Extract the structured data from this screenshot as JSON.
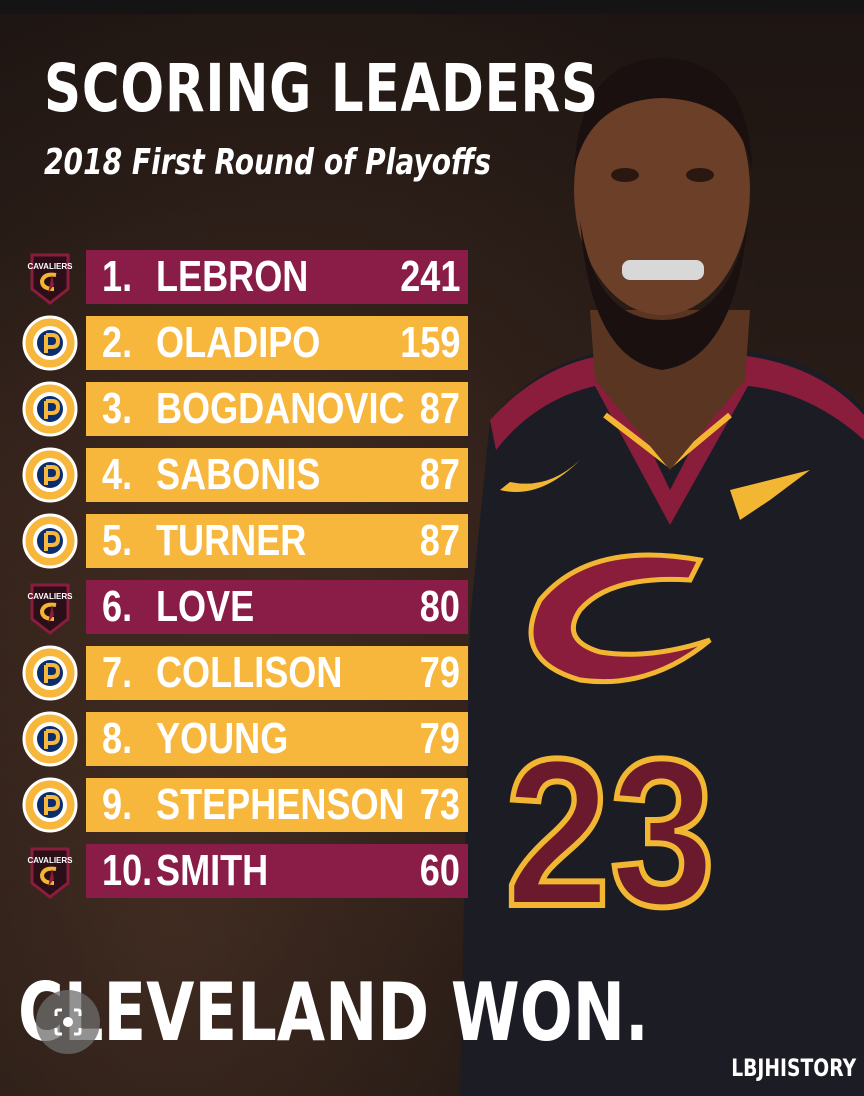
{
  "title": "SCORING LEADERS",
  "subtitle": "2018 First Round of Playoffs",
  "leaders": [
    {
      "rank": "1.",
      "name": "LEBRON",
      "points": "241",
      "team": "cavaliers",
      "logo_text": "CAVALIERS"
    },
    {
      "rank": "2.",
      "name": "OLADIPO",
      "points": "159",
      "team": "pacers"
    },
    {
      "rank": "3.",
      "name": "BOGDANOVIC",
      "points": "87",
      "team": "pacers"
    },
    {
      "rank": "4.",
      "name": "SABONIS",
      "points": "87",
      "team": "pacers"
    },
    {
      "rank": "5.",
      "name": "TURNER",
      "points": "87",
      "team": "pacers"
    },
    {
      "rank": "6.",
      "name": "LOVE",
      "points": "80",
      "team": "cavaliers",
      "logo_text": "CAVALIERS"
    },
    {
      "rank": "7.",
      "name": "COLLISON",
      "points": "79",
      "team": "pacers"
    },
    {
      "rank": "8.",
      "name": "YOUNG",
      "points": "79",
      "team": "pacers"
    },
    {
      "rank": "9.",
      "name": "STEPHENSON",
      "points": "73",
      "team": "pacers"
    },
    {
      "rank": "10.",
      "name": "SMITH",
      "points": "60",
      "team": "cavaliers",
      "logo_text": "CAVALIERS"
    }
  ],
  "colors": {
    "cavaliers_bar": "#8a1d48",
    "pacers_bar": "#f7b63c",
    "jersey": "#1c1c24",
    "jersey_trim": "#8a1d3c",
    "gold": "#f2b632"
  },
  "jersey_number": "23",
  "footer": "CLEVELAND WON.",
  "credit": "LBJHISTORY",
  "icons": {
    "cavaliers_logo": "cavaliers-logo-icon",
    "pacers_logo": "pacers-logo-icon",
    "lens": "lens-icon"
  }
}
